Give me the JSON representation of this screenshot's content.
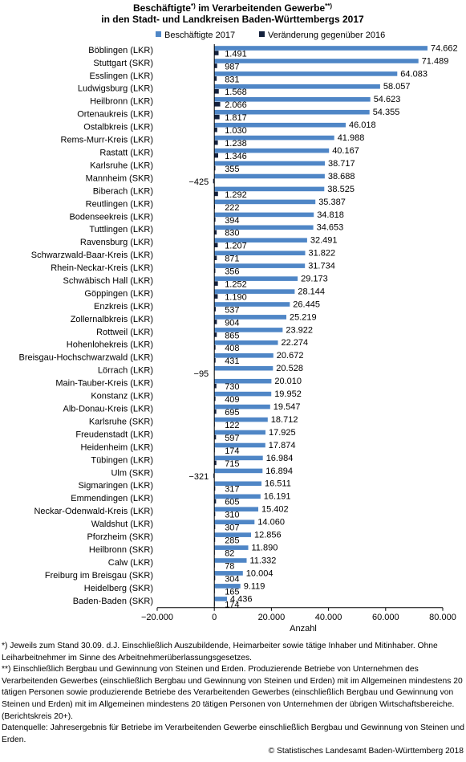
{
  "title": {
    "line1_a": "Beschäftigte",
    "line1_sup1": "*)",
    "line1_b": " im Verarbeitenden Gewerbe",
    "line1_sup2": "**)",
    "line2": "in den Stadt- und Landkreisen Baden-Württembergs 2017"
  },
  "colors": {
    "series1": "#4f86c6",
    "series2": "#14213d",
    "axis": "#000000"
  },
  "chart_data": {
    "type": "bar",
    "orientation": "horizontal",
    "categories": [
      "Böblingen (LKR)",
      "Stuttgart (SKR)",
      "Esslingen (LKR)",
      "Ludwigsburg (LKR)",
      "Heilbronn (LKR)",
      "Ortenaukreis (LKR)",
      "Ostalbkreis (LKR)",
      "Rems-Murr-Kreis (LKR)",
      "Rastatt (LKR)",
      "Karlsruhe (LKR)",
      "Mannheim (SKR)",
      "Biberach (LKR)",
      "Reutlingen (LKR)",
      "Bodenseekreis (LKR)",
      "Tuttlingen (LKR)",
      "Ravensburg (LKR)",
      "Schwarzwald-Baar-Kreis (LKR)",
      "Rhein-Neckar-Kreis (LKR)",
      "Schwäbisch Hall (LKR)",
      "Göppingen (LKR)",
      "Enzkreis (LKR)",
      "Zollernalbkreis (LKR)",
      "Rottweil (LKR)",
      "Hohenlohekreis (LKR)",
      "Breisgau-Hochschwarzwald (LKR)",
      "Lörrach (LKR)",
      "Main-Tauber-Kreis (LKR)",
      "Konstanz (LKR)",
      "Alb-Donau-Kreis (LKR)",
      "Karlsruhe (SKR)",
      "Freudenstadt (LKR)",
      "Heidenheim (LKR)",
      "Tübingen (LKR)",
      "Ulm (SKR)",
      "Sigmaringen (LKR)",
      "Emmendingen (LKR)",
      "Neckar-Odenwald-Kreis (LKR)",
      "Waldshut (LKR)",
      "Pforzheim (SKR)",
      "Heilbronn (SKR)",
      "Calw (LKR)",
      "Freiburg im Breisgau (SKR)",
      "Heidelberg (SKR)",
      "Baden-Baden (SKR)"
    ],
    "series": [
      {
        "name": "Beschäftigte 2017",
        "values": [
          74662,
          71489,
          64083,
          58057,
          54623,
          54355,
          46018,
          41988,
          40167,
          38717,
          38688,
          38525,
          35387,
          34818,
          34653,
          32491,
          31822,
          31734,
          29173,
          28144,
          26445,
          25219,
          23922,
          22274,
          20672,
          20528,
          20010,
          19952,
          19547,
          18712,
          17925,
          17874,
          16984,
          16894,
          16511,
          16191,
          15402,
          14060,
          12856,
          11890,
          11332,
          10004,
          9119,
          4436
        ],
        "labels": [
          "74.662",
          "71.489",
          "64.083",
          "58.057",
          "54.623",
          "54.355",
          "46.018",
          "41.988",
          "40.167",
          "38.717",
          "38.688",
          "38.525",
          "35.387",
          "34.818",
          "34.653",
          "32.491",
          "31.822",
          "31.734",
          "29.173",
          "28.144",
          "26.445",
          "25.219",
          "23.922",
          "22.274",
          "20.672",
          "20.528",
          "20.010",
          "19.952",
          "19.547",
          "18.712",
          "17.925",
          "17.874",
          "16.984",
          "16.894",
          "16.511",
          "16.191",
          "15.402",
          "14.060",
          "12.856",
          "11.890",
          "11.332",
          "10.004",
          "9.119",
          "4.436"
        ]
      },
      {
        "name": "Veränderung gegenüber 2016",
        "values": [
          1491,
          987,
          831,
          1568,
          2066,
          1817,
          1030,
          1238,
          1346,
          355,
          -425,
          1292,
          222,
          394,
          830,
          1207,
          871,
          356,
          1252,
          1190,
          537,
          904,
          865,
          408,
          431,
          -95,
          730,
          409,
          695,
          122,
          597,
          174,
          715,
          -321,
          317,
          605,
          310,
          307,
          285,
          82,
          78,
          304,
          165,
          174
        ],
        "labels": [
          "1.491",
          "987",
          "831",
          "1.568",
          "2.066",
          "1.817",
          "1.030",
          "1.238",
          "1.346",
          "355",
          "−425",
          "1.292",
          "222",
          "394",
          "830",
          "1.207",
          "871",
          "356",
          "1.252",
          "1.190",
          "537",
          "904",
          "865",
          "408",
          "431",
          "−95",
          "730",
          "409",
          "695",
          "122",
          "597",
          "174",
          "715",
          "−321",
          "317",
          "605",
          "310",
          "307",
          "285",
          "82",
          "78",
          "304",
          "165",
          "174"
        ]
      }
    ],
    "xlim": [
      -20000,
      80000
    ],
    "xticks": [
      -20000,
      0,
      20000,
      40000,
      60000,
      80000
    ],
    "xtick_labels": [
      "−20.000",
      "0",
      "20.000",
      "40.000",
      "60.000",
      "80.000"
    ],
    "xlabel": "Anzahl",
    "legend_position": "top",
    "grid": false
  },
  "footnotes": [
    "*) Jeweils zum Stand 30.09. d.J. Einschließlich Auszubildende, Heimarbeiter sowie tätige Inhaber und Mitinhaber. Ohne Leiharbeitnehmer im Sinne des Arbeitnehmerüberlassungsgesetzes.",
    "**) Einschließlich Bergbau und Gewinnung von Steinen und Erden. Produzierende Betriebe von Unternehmen des Verarbeitenden Gewerbes (einschließlich Bergbau und Gewinnung von Steinen und Erden) mit im Allgemeinen mindestens 20 tätigen Personen sowie produzierende Betriebe des Verarbeitenden Gewerbes (einschließlich Bergbau und Gewinnung von Steinen und Erden) mit im Allgemeinen mindestens 20 tätigen Personen von Unternehmen der übrigen Wirtschaftsbereiche. (Berichtskreis 20+).",
    "Datenquelle: Jahresergebnis für Betriebe im Verarbeitenden Gewerbe einschließlich Bergbau und Gewinnung von Steinen und Erden."
  ],
  "copyright": "© Statistisches Landesamt Baden-Württemberg 2018"
}
